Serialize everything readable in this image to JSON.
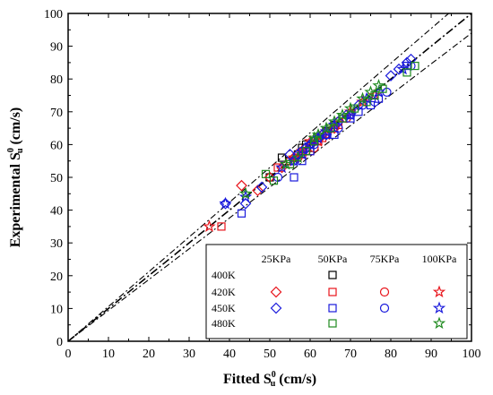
{
  "chart_data": {
    "type": "scatter",
    "xlabel": {
      "main": "Fitted S",
      "sup": "0",
      "sub": "u",
      "unit": " (cm/s)"
    },
    "ylabel": {
      "main": "Experimental S",
      "sup": "0",
      "sub": "u",
      "unit": " (cm/s)"
    },
    "xlim": [
      0,
      100
    ],
    "ylim": [
      0,
      100
    ],
    "xticks": [
      0,
      10,
      20,
      30,
      40,
      50,
      60,
      70,
      80,
      90,
      100
    ],
    "yticks": [
      0,
      10,
      20,
      30,
      40,
      50,
      60,
      70,
      80,
      90,
      100
    ],
    "grid": false,
    "reference_lines": [
      {
        "style": "dash-dot",
        "slope": 1.0
      },
      {
        "style": "dash-dot",
        "slope": 1.06
      },
      {
        "style": "dash-dot",
        "slope": 0.94
      }
    ],
    "legend": {
      "placement": "bottom-right",
      "pressure_headers": [
        "25KPa",
        "50KPa",
        "75KPa",
        "100KPa"
      ],
      "temperature_rows": [
        "400K",
        "420K",
        "450K",
        "480K"
      ]
    },
    "colors": {
      "400K": "#000000",
      "420K": "#e8141b",
      "450K": "#1a1adc",
      "480K": "#1f8a1f"
    },
    "markers": {
      "25KPa": "diamond",
      "50KPa": "square",
      "75KPa": "circle",
      "100KPa": "star"
    },
    "series": [
      {
        "temperature": "400K",
        "pressure": "50KPa",
        "points": [
          [
            50,
            50
          ],
          [
            53,
            56
          ],
          [
            55,
            55
          ],
          [
            57,
            57
          ],
          [
            58,
            59
          ],
          [
            59,
            60
          ],
          [
            60,
            59
          ],
          [
            61,
            61
          ],
          [
            62,
            62
          ],
          [
            64,
            64
          ],
          [
            66,
            66
          ],
          [
            68,
            68
          ]
        ]
      },
      {
        "temperature": "420K",
        "pressure": "25KPa",
        "points": [
          [
            43,
            47.5
          ],
          [
            47,
            46
          ],
          [
            50,
            50
          ],
          [
            53,
            53
          ],
          [
            56,
            56
          ],
          [
            58,
            58
          ],
          [
            61,
            61
          ],
          [
            63,
            63
          ],
          [
            66,
            65
          ]
        ]
      },
      {
        "temperature": "420K",
        "pressure": "50KPa",
        "points": [
          [
            38,
            35
          ],
          [
            52,
            53
          ],
          [
            55,
            54
          ],
          [
            58,
            57
          ],
          [
            60,
            58
          ],
          [
            62,
            61
          ],
          [
            63,
            62
          ],
          [
            65,
            65
          ],
          [
            67,
            66
          ]
        ]
      },
      {
        "temperature": "420K",
        "pressure": "75KPa",
        "points": [
          [
            55,
            55
          ],
          [
            57,
            56
          ],
          [
            59,
            58
          ],
          [
            60,
            60
          ],
          [
            61,
            59
          ],
          [
            62,
            62
          ],
          [
            63,
            63
          ],
          [
            67,
            67
          ],
          [
            69,
            68
          ]
        ]
      },
      {
        "temperature": "420K",
        "pressure": "100KPa",
        "points": [
          [
            35,
            35
          ],
          [
            53,
            53
          ],
          [
            56,
            56
          ],
          [
            58,
            58
          ],
          [
            60,
            61
          ],
          [
            62,
            61
          ],
          [
            64,
            63
          ],
          [
            66,
            65
          ],
          [
            70,
            70
          ],
          [
            73,
            73
          ],
          [
            76,
            75
          ]
        ]
      },
      {
        "temperature": "450K",
        "pressure": "25KPa",
        "points": [
          [
            39,
            42
          ],
          [
            44,
            42
          ],
          [
            48,
            47
          ],
          [
            55,
            57
          ],
          [
            57,
            57
          ],
          [
            59,
            59
          ],
          [
            60,
            60
          ],
          [
            61,
            61
          ],
          [
            63,
            63
          ],
          [
            64,
            63
          ],
          [
            67,
            67
          ],
          [
            69,
            69
          ],
          [
            72,
            72
          ],
          [
            80,
            81
          ],
          [
            82,
            83
          ],
          [
            84,
            85
          ],
          [
            85,
            86
          ]
        ]
      },
      {
        "temperature": "450K",
        "pressure": "50KPa",
        "points": [
          [
            43,
            39
          ],
          [
            56,
            50
          ],
          [
            58,
            55
          ],
          [
            60,
            58
          ],
          [
            64,
            63
          ],
          [
            66,
            63
          ],
          [
            70,
            68
          ],
          [
            72,
            70
          ],
          [
            75,
            72
          ],
          [
            77,
            74
          ],
          [
            84,
            84
          ]
        ]
      },
      {
        "temperature": "450K",
        "pressure": "75KPa",
        "points": [
          [
            52,
            50
          ],
          [
            56,
            55
          ],
          [
            58,
            58
          ],
          [
            61,
            60
          ],
          [
            62,
            62
          ],
          [
            64,
            63
          ],
          [
            67,
            65
          ],
          [
            70,
            69
          ],
          [
            73,
            72
          ],
          [
            76,
            73
          ],
          [
            79,
            76
          ],
          [
            85,
            84
          ]
        ]
      },
      {
        "temperature": "450K",
        "pressure": "100KPa",
        "points": [
          [
            39,
            42
          ],
          [
            44,
            44
          ],
          [
            53,
            53
          ],
          [
            56,
            55
          ],
          [
            58,
            57
          ],
          [
            60,
            60
          ],
          [
            62,
            62
          ],
          [
            64,
            64
          ],
          [
            66,
            66
          ],
          [
            70,
            69
          ],
          [
            74,
            74
          ],
          [
            77,
            76
          ],
          [
            83,
            83
          ]
        ]
      },
      {
        "temperature": "480K",
        "pressure": "50KPa",
        "points": [
          [
            49,
            51
          ],
          [
            51,
            49
          ],
          [
            55,
            54
          ],
          [
            59,
            58
          ],
          [
            61,
            61
          ],
          [
            65,
            65
          ],
          [
            68,
            68
          ],
          [
            71,
            71
          ],
          [
            74,
            73
          ],
          [
            76,
            75
          ],
          [
            78,
            77
          ],
          [
            84,
            82
          ],
          [
            86,
            84
          ]
        ]
      },
      {
        "temperature": "480K",
        "pressure": "100KPa",
        "points": [
          [
            44,
            45
          ],
          [
            54,
            54
          ],
          [
            57,
            56
          ],
          [
            61,
            62
          ],
          [
            62,
            63
          ],
          [
            64,
            65
          ],
          [
            66,
            67
          ],
          [
            68,
            69
          ],
          [
            70,
            71
          ],
          [
            73,
            74
          ],
          [
            75,
            76
          ],
          [
            77,
            78
          ]
        ]
      }
    ]
  }
}
